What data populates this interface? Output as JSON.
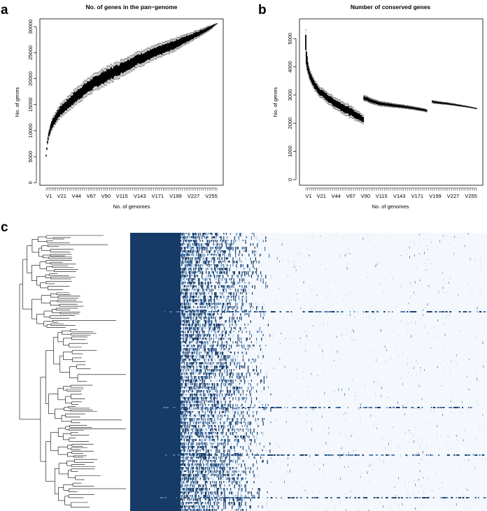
{
  "figure": {
    "panels": [
      {
        "id": "a",
        "letter": "a"
      },
      {
        "id": "b",
        "letter": "b"
      },
      {
        "id": "c",
        "letter": "c"
      }
    ]
  },
  "colors": {
    "box": "#000000",
    "whisker": "#555555",
    "heat_dark": "#163b66",
    "heat_mid": "#4e7cae",
    "heat_light": "#c9d8ea",
    "heat_bg": "#f4f8fc",
    "tree": "#000000"
  },
  "chart_data": [
    {
      "panel": "a",
      "type": "box",
      "title": "No. of genes in the pan−genome",
      "xlabel": "No. of genomes",
      "ylabel": "No. of genes",
      "ylim": [
        -500,
        31500
      ],
      "yticks": [
        0,
        5000,
        10000,
        15000,
        20000,
        25000,
        30000
      ],
      "x_categories_shown": [
        "V1",
        "V21",
        "V44",
        "V67",
        "V90",
        "V115",
        "V143",
        "V171",
        "V199",
        "V227",
        "V255"
      ],
      "n_genomes": 268,
      "median_curve": [
        [
          1,
          5200
        ],
        [
          3,
          7800
        ],
        [
          5,
          9200
        ],
        [
          10,
          11200
        ],
        [
          21,
          13500
        ],
        [
          44,
          16200
        ],
        [
          67,
          18500
        ],
        [
          90,
          20200
        ],
        [
          115,
          21800
        ],
        [
          143,
          23600
        ],
        [
          171,
          25000
        ],
        [
          199,
          26400
        ],
        [
          227,
          28000
        ],
        [
          255,
          29600
        ],
        [
          268,
          30600
        ]
      ],
      "spread_curve": [
        [
          1,
          200
        ],
        [
          10,
          1400
        ],
        [
          44,
          2000
        ],
        [
          90,
          2200
        ],
        [
          143,
          1900
        ],
        [
          199,
          1600
        ],
        [
          227,
          1100
        ],
        [
          255,
          600
        ],
        [
          268,
          50
        ]
      ],
      "grid": false
    },
    {
      "panel": "b",
      "type": "box",
      "title": "Number of conserved genes",
      "xlabel": "No. of genomes",
      "ylabel": "No. of genes",
      "ylim": [
        -200,
        5700
      ],
      "yticks": [
        0,
        1000,
        2000,
        3000,
        4000,
        5000
      ],
      "x_categories_shown": [
        "V1",
        "V21",
        "V44",
        "V67",
        "V90",
        "V115",
        "V143",
        "V171",
        "V199",
        "V227",
        "V255"
      ],
      "n_genomes": 268,
      "segments": [
        {
          "from": 1,
          "to": 91,
          "median_curve": [
            [
              1,
              4800
            ],
            [
              2,
              4300
            ],
            [
              4,
              4000
            ],
            [
              8,
              3650
            ],
            [
              15,
              3350
            ],
            [
              21,
              3150
            ],
            [
              44,
              2750
            ],
            [
              67,
              2450
            ],
            [
              90,
              2150
            ]
          ],
          "spread_curve": [
            [
              1,
              600
            ],
            [
              5,
              250
            ],
            [
              21,
              220
            ],
            [
              67,
              280
            ],
            [
              90,
              200
            ]
          ]
        },
        {
          "from": 92,
          "to": 190,
          "median_curve": [
            [
              92,
              2900
            ],
            [
              115,
              2700
            ],
            [
              143,
              2620
            ],
            [
              171,
              2530
            ],
            [
              190,
              2450
            ]
          ],
          "spread_curve": [
            [
              92,
              130
            ],
            [
              143,
              80
            ],
            [
              190,
              60
            ]
          ]
        },
        {
          "from": 199,
          "to": 268,
          "median_curve": [
            [
              199,
              2760
            ],
            [
              227,
              2680
            ],
            [
              255,
              2580
            ],
            [
              268,
              2520
            ]
          ],
          "spread_curve": [
            [
              199,
              60
            ],
            [
              268,
              20
            ]
          ]
        }
      ],
      "grid": false
    }
  ]
}
